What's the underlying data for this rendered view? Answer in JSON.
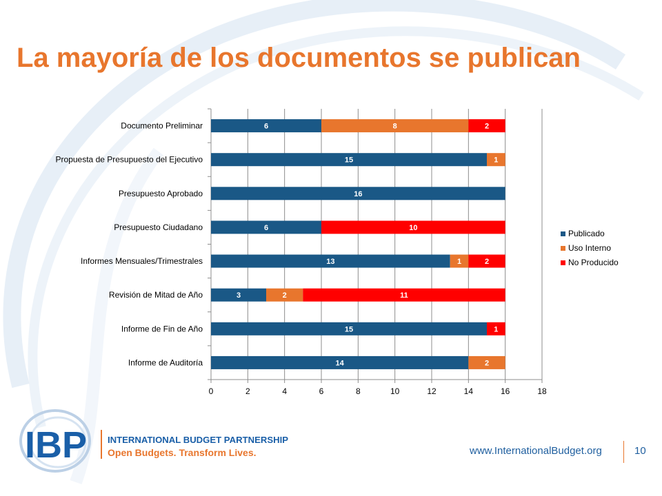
{
  "slide": {
    "title": "La mayoría de los documentos se publican",
    "footer_url": "www.InternationalBudget.org",
    "page_number": "10"
  },
  "logo": {
    "mark": "IBP",
    "line1": "INTERNATIONAL BUDGET PARTNERSHIP",
    "line2": "Open Budgets. Transform Lives."
  },
  "colors": {
    "title": "#e8762d",
    "publicado": "#1a5886",
    "uso_interno": "#e8762d",
    "no_producido": "#ff0000",
    "footer_text": "#1f5f9f"
  },
  "chart_data": {
    "type": "bar",
    "orientation": "horizontal",
    "stacked": true,
    "categories": [
      "Documento Preliminar",
      "Propuesta de Presupuesto del Ejecutivo",
      "Presupuesto Aprobado",
      "Presupuesto Ciudadano",
      "Informes Mensuales/Trimestrales",
      "Revisión de Mitad de Año",
      "Informe de Fin de Año",
      "Informe de Auditoría"
    ],
    "series": [
      {
        "name": "Publicado",
        "color": "#1a5886",
        "values": [
          6,
          15,
          16,
          6,
          13,
          3,
          15,
          14
        ]
      },
      {
        "name": "Uso Interno",
        "color": "#e8762d",
        "values": [
          8,
          1,
          0,
          0,
          1,
          2,
          0,
          2
        ]
      },
      {
        "name": "No Producido",
        "color": "#ff0000",
        "values": [
          2,
          0,
          0,
          10,
          2,
          11,
          1,
          0
        ]
      }
    ],
    "xlim": [
      0,
      18
    ],
    "xticks": [
      "0",
      "2",
      "4",
      "6",
      "8",
      "10",
      "12",
      "14",
      "16",
      "18"
    ],
    "grid": "vertical",
    "legend": "right",
    "data_labels": true
  }
}
